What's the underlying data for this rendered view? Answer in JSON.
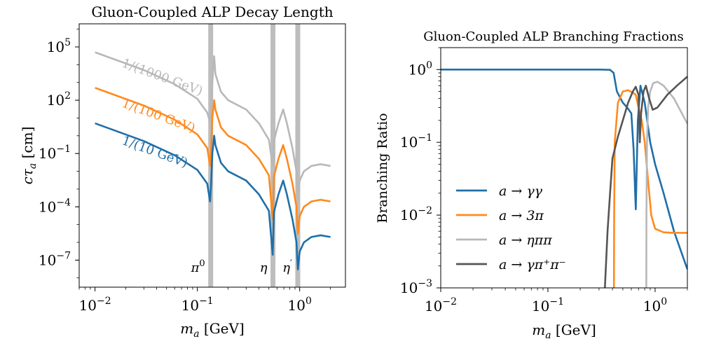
{
  "colors": {
    "blue": "#1f6fa8",
    "orange": "#ff8a1e",
    "lightgray": "#b8b8b8",
    "darkgray": "#555555",
    "band": "#bdbdbd"
  },
  "chart_data": [
    {
      "type": "line",
      "title": "Gluon-Coupled ALP Decay Length",
      "xlabel": "m_a [GeV]",
      "ylabel": "cτ_a [cm]",
      "xscale": "log",
      "yscale": "log",
      "xlim": [
        0.007,
        2.8
      ],
      "ylim": [
        3e-09,
        2000000.0
      ],
      "xticks": [
        {
          "value": 0.01,
          "base": "10",
          "exp": "−2"
        },
        {
          "value": 0.1,
          "base": "10",
          "exp": "−1"
        },
        {
          "value": 1,
          "base": "10",
          "exp": "0"
        }
      ],
      "yticks": [
        {
          "value": 1e-07,
          "base": "10",
          "exp": "−7"
        },
        {
          "value": 0.0001,
          "base": "10",
          "exp": "−4"
        },
        {
          "value": 0.1,
          "base": "10",
          "exp": "−1"
        },
        {
          "value": 100,
          "base": "10",
          "exp": "2"
        },
        {
          "value": 100000,
          "base": "10",
          "exp": "5"
        }
      ],
      "vbands": [
        {
          "x": 0.135,
          "label_base": "π",
          "label_sup": "0"
        },
        {
          "x": 0.548,
          "label_base": "η",
          "label_sup": ""
        },
        {
          "x": 0.958,
          "label_base": "η",
          "label_sup": "′"
        }
      ],
      "series": [
        {
          "name": "1/(1000 GeV)",
          "color_key": "lightgray",
          "label_angle": 20,
          "points": [
            [
              0.01,
              50000
            ],
            [
              0.03,
              5000
            ],
            [
              0.06,
              800
            ],
            [
              0.1,
              120
            ],
            [
              0.125,
              20
            ],
            [
              0.133,
              6
            ],
            [
              0.136,
              15
            ],
            [
              0.14,
              1000
            ],
            [
              0.146,
              30000
            ],
            [
              0.15,
              3000
            ],
            [
              0.17,
              300
            ],
            [
              0.2,
              100
            ],
            [
              0.3,
              30
            ],
            [
              0.4,
              5
            ],
            [
              0.5,
              0.6
            ],
            [
              0.545,
              0.02
            ],
            [
              0.56,
              0.5
            ],
            [
              0.62,
              5
            ],
            [
              0.69,
              30
            ],
            [
              0.75,
              5
            ],
            [
              0.85,
              0.2
            ],
            [
              0.93,
              0.01
            ],
            [
              0.96,
              0.0003
            ],
            [
              1.0,
              0.003
            ],
            [
              1.1,
              0.01
            ],
            [
              1.3,
              0.02
            ],
            [
              1.6,
              0.025
            ],
            [
              2.0,
              0.02
            ]
          ]
        },
        {
          "name": "1/(100 GeV)",
          "color_key": "orange",
          "label_angle": 20,
          "points": [
            [
              0.01,
              500
            ],
            [
              0.03,
              50
            ],
            [
              0.06,
              8
            ],
            [
              0.1,
              1.2
            ],
            [
              0.125,
              0.2
            ],
            [
              0.133,
              0.02
            ],
            [
              0.136,
              0.15
            ],
            [
              0.14,
              10
            ],
            [
              0.146,
              100
            ],
            [
              0.15,
              30
            ],
            [
              0.17,
              3
            ],
            [
              0.2,
              1
            ],
            [
              0.3,
              0.3
            ],
            [
              0.4,
              0.05
            ],
            [
              0.5,
              0.006
            ],
            [
              0.545,
              2e-05
            ],
            [
              0.56,
              0.005
            ],
            [
              0.62,
              0.05
            ],
            [
              0.69,
              0.3
            ],
            [
              0.75,
              0.05
            ],
            [
              0.85,
              0.002
            ],
            [
              0.93,
              0.0001
            ],
            [
              0.96,
              3e-06
            ],
            [
              1.0,
              3e-05
            ],
            [
              1.1,
              0.0001
            ],
            [
              1.3,
              0.0002
            ],
            [
              1.6,
              0.00025
            ],
            [
              2.0,
              0.0002
            ]
          ]
        },
        {
          "name": "1/(10 GeV)",
          "color_key": "blue",
          "label_angle": 20,
          "points": [
            [
              0.01,
              5
            ],
            [
              0.03,
              0.5
            ],
            [
              0.06,
              0.08
            ],
            [
              0.1,
              0.012
            ],
            [
              0.125,
              0.002
            ],
            [
              0.133,
              0.0002
            ],
            [
              0.136,
              0.0015
            ],
            [
              0.14,
              0.1
            ],
            [
              0.146,
              1
            ],
            [
              0.15,
              0.3
            ],
            [
              0.17,
              0.03
            ],
            [
              0.2,
              0.01
            ],
            [
              0.3,
              0.003
            ],
            [
              0.4,
              0.0005
            ],
            [
              0.5,
              6e-05
            ],
            [
              0.545,
              2e-07
            ],
            [
              0.56,
              5e-05
            ],
            [
              0.62,
              0.0005
            ],
            [
              0.69,
              0.003
            ],
            [
              0.75,
              0.0005
            ],
            [
              0.85,
              2e-05
            ],
            [
              0.93,
              1e-06
            ],
            [
              0.96,
              3e-08
            ],
            [
              1.0,
              3e-07
            ],
            [
              1.1,
              1e-06
            ],
            [
              1.3,
              2e-06
            ],
            [
              1.6,
              2.5e-06
            ],
            [
              2.0,
              2e-06
            ]
          ]
        }
      ]
    },
    {
      "type": "line",
      "title": "Gluon-Coupled ALP Branching Fractions",
      "xlabel": "m_a [GeV]",
      "ylabel": "Branching Ratio",
      "xscale": "log",
      "yscale": "log",
      "xlim": [
        0.01,
        2.0
      ],
      "ylim": [
        0.001,
        2.0
      ],
      "xticks": [
        {
          "value": 0.01,
          "base": "10",
          "exp": "−2"
        },
        {
          "value": 0.1,
          "base": "10",
          "exp": "−1"
        },
        {
          "value": 1,
          "base": "10",
          "exp": "0"
        }
      ],
      "yticks": [
        {
          "value": 0.001,
          "base": "10",
          "exp": "−3"
        },
        {
          "value": 0.01,
          "base": "10",
          "exp": "−2"
        },
        {
          "value": 0.1,
          "base": "10",
          "exp": "−1"
        },
        {
          "value": 1,
          "base": "10",
          "exp": "0"
        }
      ],
      "legend": {
        "placement": "lower-left"
      },
      "series": [
        {
          "name": "a → γγ",
          "color_key": "blue",
          "points": [
            [
              0.01,
              1
            ],
            [
              0.3,
              1
            ],
            [
              0.38,
              0.99
            ],
            [
              0.41,
              0.9
            ],
            [
              0.44,
              0.5
            ],
            [
              0.5,
              0.35
            ],
            [
              0.55,
              0.3
            ],
            [
              0.6,
              0.25
            ],
            [
              0.63,
              0.08
            ],
            [
              0.66,
              0.012
            ],
            [
              0.69,
              0.2
            ],
            [
              0.73,
              0.6
            ],
            [
              0.8,
              0.35
            ],
            [
              0.9,
              0.1
            ],
            [
              1.0,
              0.05
            ],
            [
              1.2,
              0.02
            ],
            [
              1.5,
              0.006
            ],
            [
              2.0,
              0.0018
            ]
          ]
        },
        {
          "name": "a → 3π",
          "color_key": "orange",
          "points": [
            [
              0.413,
              0.001
            ],
            [
              0.415,
              0.01
            ],
            [
              0.42,
              0.1
            ],
            [
              0.45,
              0.35
            ],
            [
              0.5,
              0.5
            ],
            [
              0.56,
              0.52
            ],
            [
              0.62,
              0.48
            ],
            [
              0.66,
              0.45
            ],
            [
              0.7,
              0.3
            ],
            [
              0.75,
              0.2
            ],
            [
              0.8,
              0.1
            ],
            [
              0.86,
              0.03
            ],
            [
              0.92,
              0.01
            ],
            [
              1.0,
              0.0065
            ],
            [
              1.2,
              0.0058
            ],
            [
              1.5,
              0.0057
            ],
            [
              2.0,
              0.0057
            ]
          ]
        },
        {
          "name": "a → ηππ",
          "color_key": "lightgray",
          "points": [
            [
              0.828,
              0.001
            ],
            [
              0.83,
              0.01
            ],
            [
              0.84,
              0.1
            ],
            [
              0.86,
              0.3
            ],
            [
              0.9,
              0.5
            ],
            [
              0.96,
              0.65
            ],
            [
              1.05,
              0.68
            ],
            [
              1.2,
              0.6
            ],
            [
              1.5,
              0.4
            ],
            [
              2.0,
              0.18
            ]
          ]
        },
        {
          "name": "a → γπ⁺π⁻",
          "color_key": "darkgray",
          "points": [
            [
              0.34,
              0.001
            ],
            [
              0.36,
              0.006
            ],
            [
              0.38,
              0.02
            ],
            [
              0.4,
              0.06
            ],
            [
              0.45,
              0.12
            ],
            [
              0.5,
              0.2
            ],
            [
              0.56,
              0.35
            ],
            [
              0.62,
              0.5
            ],
            [
              0.66,
              0.58
            ],
            [
              0.7,
              0.45
            ],
            [
              0.72,
              0.1
            ],
            [
              0.74,
              0.25
            ],
            [
              0.78,
              0.5
            ],
            [
              0.82,
              0.6
            ],
            [
              0.88,
              0.4
            ],
            [
              0.95,
              0.28
            ],
            [
              1.05,
              0.3
            ],
            [
              1.3,
              0.45
            ],
            [
              1.6,
              0.6
            ],
            [
              2.0,
              0.8
            ]
          ]
        }
      ]
    }
  ]
}
